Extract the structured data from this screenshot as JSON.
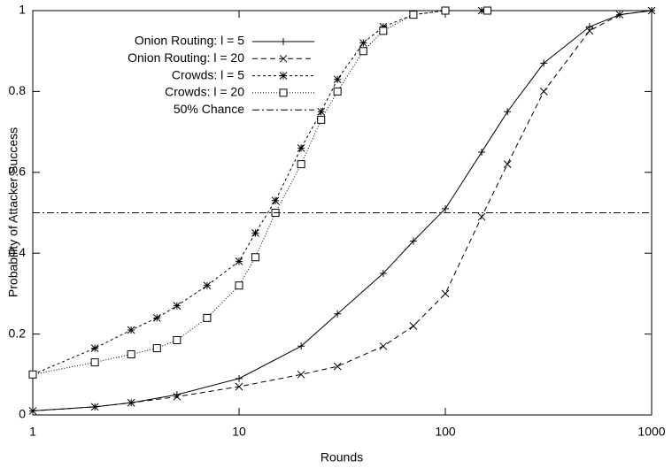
{
  "chart_data": {
    "type": "line",
    "xlabel": "Rounds",
    "ylabel": "Probability of Attacker Success",
    "xscale": "log",
    "xlim": [
      1,
      1000
    ],
    "xticks": [
      1,
      10,
      100,
      1000
    ],
    "ylim": [
      0,
      1
    ],
    "yticks": [
      0,
      0.2,
      0.4,
      0.6,
      0.8,
      1
    ],
    "legend": "upper left",
    "series": [
      {
        "name": "Onion Routing: l = 5",
        "color": "#000000",
        "dash": "solid",
        "marker": "plus",
        "x": [
          1,
          2,
          3,
          5,
          10,
          20,
          30,
          50,
          70,
          100,
          150,
          200,
          300,
          500,
          700,
          1000
        ],
        "values": [
          0.01,
          0.02,
          0.03,
          0.05,
          0.09,
          0.17,
          0.25,
          0.35,
          0.43,
          0.51,
          0.65,
          0.75,
          0.87,
          0.96,
          0.99,
          1.0
        ]
      },
      {
        "name": "Onion Routing: l = 20",
        "color": "#000000",
        "dash": "dashed",
        "marker": "cross",
        "x": [
          1,
          2,
          3,
          5,
          10,
          20,
          30,
          50,
          70,
          100,
          150,
          200,
          300,
          500,
          700,
          1000
        ],
        "values": [
          0.01,
          0.02,
          0.03,
          0.045,
          0.07,
          0.1,
          0.12,
          0.17,
          0.22,
          0.3,
          0.49,
          0.62,
          0.8,
          0.95,
          0.99,
          1.0
        ]
      },
      {
        "name": "Crowds: l = 5",
        "color": "#000000",
        "dash": "shortdash",
        "marker": "star",
        "x": [
          1,
          2,
          3,
          4,
          5,
          7,
          10,
          12,
          15,
          20,
          25,
          30,
          40,
          50,
          70,
          100,
          150
        ],
        "values": [
          0.1,
          0.165,
          0.21,
          0.24,
          0.27,
          0.32,
          0.38,
          0.45,
          0.53,
          0.66,
          0.75,
          0.83,
          0.92,
          0.96,
          0.99,
          1.0,
          1.0
        ]
      },
      {
        "name": "Crowds: l = 20",
        "color": "#000000",
        "dash": "dotted",
        "marker": "square",
        "x": [
          1,
          2,
          3,
          4,
          5,
          7,
          10,
          12,
          15,
          20,
          25,
          30,
          40,
          50,
          70,
          100,
          160
        ],
        "values": [
          0.1,
          0.13,
          0.15,
          0.165,
          0.185,
          0.24,
          0.32,
          0.39,
          0.5,
          0.62,
          0.73,
          0.8,
          0.9,
          0.95,
          0.99,
          1.0,
          1.0
        ]
      },
      {
        "name": "50% Chance",
        "color": "#000000",
        "dash": "dashdot",
        "marker": "none",
        "x": [
          1,
          1000
        ],
        "values": [
          0.5,
          0.5
        ]
      }
    ]
  }
}
